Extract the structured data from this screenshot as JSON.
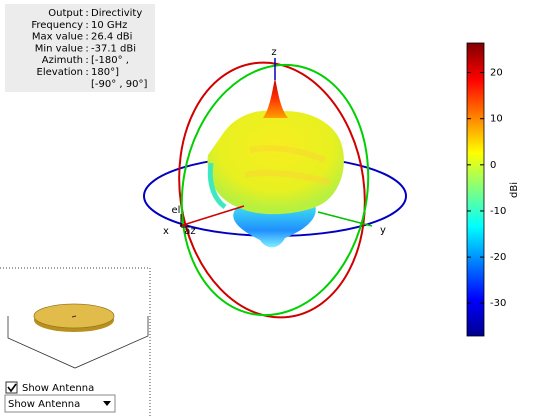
{
  "info": [
    {
      "label": "Output",
      "value": "Directivity"
    },
    {
      "label": "Frequency",
      "value": "10 GHz"
    },
    {
      "label": "Max value",
      "value": "26.4 dBi"
    },
    {
      "label": "Min value",
      "value": "-37.1 dBi"
    },
    {
      "label": "Azimuth",
      "value": "[-180° ,"
    },
    {
      "label": "Elevation",
      "value": "180°]"
    }
  ],
  "info_extra": "[-90° , 90°]",
  "colorbar": {
    "label": "dBi",
    "lim": [
      -37.1,
      26.4
    ],
    "ticks": [
      20,
      10,
      0,
      -10,
      -20,
      -30
    ]
  },
  "axes": {
    "x": "x",
    "y": "y",
    "z": "z",
    "el": "el",
    "az": "az"
  },
  "checkbox": "Show Antenna",
  "dropdown": "Show Antenna"
}
